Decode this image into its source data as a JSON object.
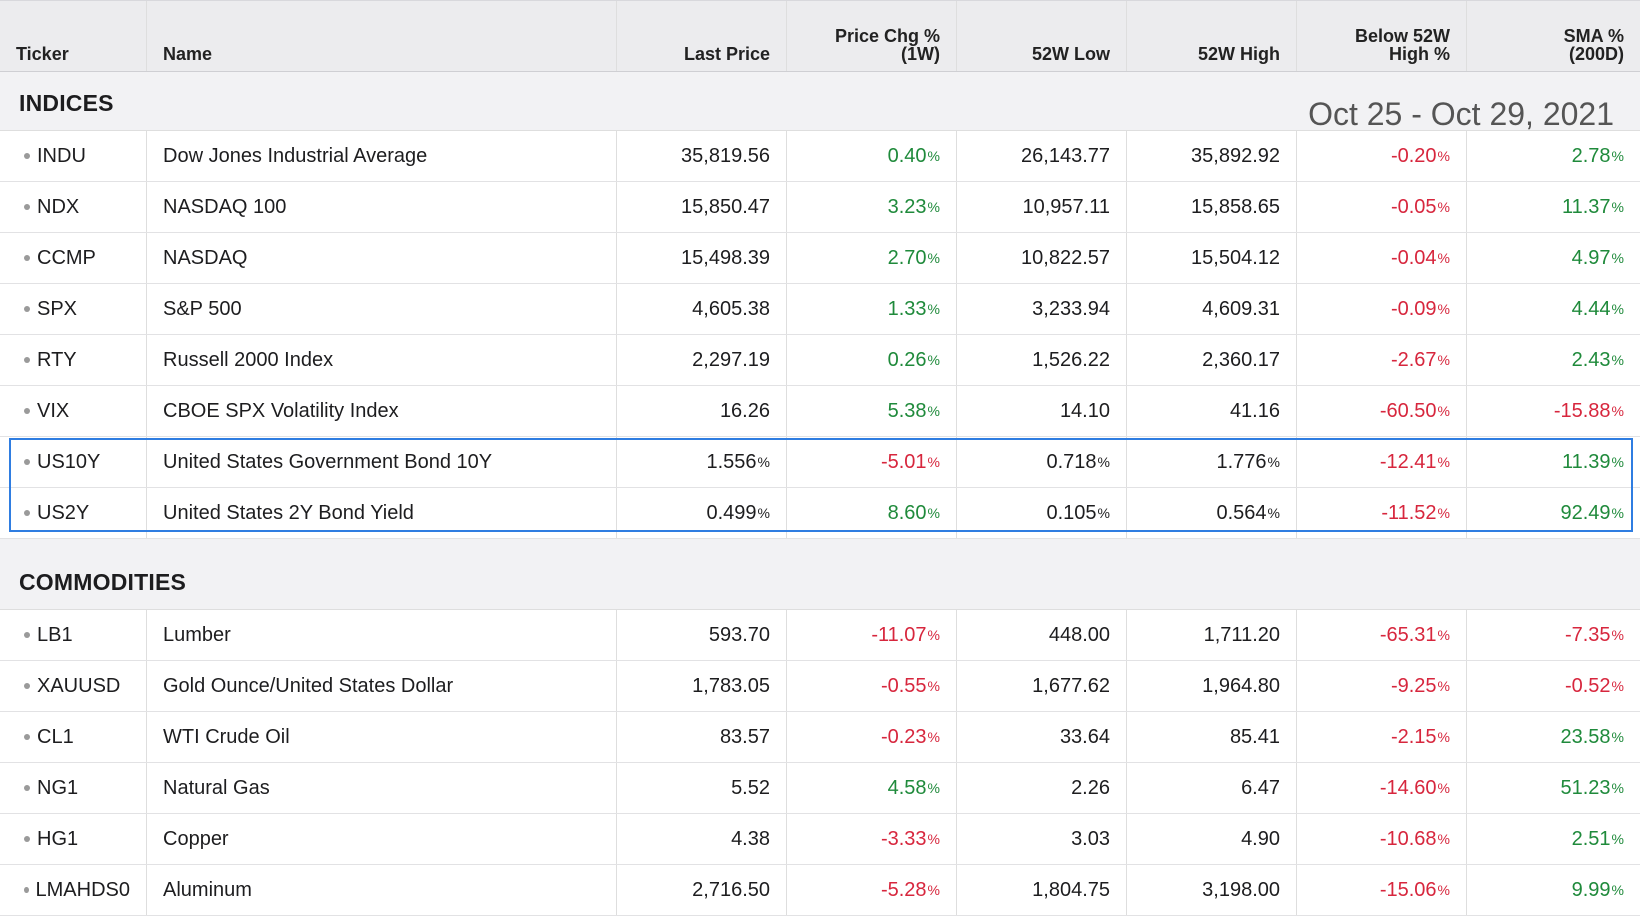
{
  "columns": [
    "Ticker",
    "Name",
    "Last Price",
    "Price Chg %|(1W)",
    "52W Low",
    "52W High",
    "Below 52W|High %",
    "SMA %|(200D)"
  ],
  "date_range": "Oct 25 - Oct 29, 2021",
  "colors": {
    "positive": "#1f8a3b",
    "negative": "#d7263d",
    "highlight": "#2f7de1"
  },
  "sections": [
    {
      "title": "INDICES",
      "rows": [
        {
          "ticker": "INDU",
          "name": "Dow Jones Industrial Average",
          "last": "35,819.56",
          "last_unit": "",
          "chg": "0.40",
          "low": "26,143.77",
          "low_unit": "",
          "high": "35,892.92",
          "high_unit": "",
          "below": "-0.20",
          "sma": "2.78"
        },
        {
          "ticker": "NDX",
          "name": "NASDAQ 100",
          "last": "15,850.47",
          "last_unit": "",
          "chg": "3.23",
          "low": "10,957.11",
          "low_unit": "",
          "high": "15,858.65",
          "high_unit": "",
          "below": "-0.05",
          "sma": "11.37"
        },
        {
          "ticker": "CCMP",
          "name": "NASDAQ",
          "last": "15,498.39",
          "last_unit": "",
          "chg": "2.70",
          "low": "10,822.57",
          "low_unit": "",
          "high": "15,504.12",
          "high_unit": "",
          "below": "-0.04",
          "sma": "4.97"
        },
        {
          "ticker": "SPX",
          "name": "S&P 500",
          "last": "4,605.38",
          "last_unit": "",
          "chg": "1.33",
          "low": "3,233.94",
          "low_unit": "",
          "high": "4,609.31",
          "high_unit": "",
          "below": "-0.09",
          "sma": "4.44"
        },
        {
          "ticker": "RTY",
          "name": "Russell 2000 Index",
          "last": "2,297.19",
          "last_unit": "",
          "chg": "0.26",
          "low": "1,526.22",
          "low_unit": "",
          "high": "2,360.17",
          "high_unit": "",
          "below": "-2.67",
          "sma": "2.43"
        },
        {
          "ticker": "VIX",
          "name": "CBOE SPX Volatility Index",
          "last": "16.26",
          "last_unit": "",
          "chg": "5.38",
          "low": "14.10",
          "low_unit": "",
          "high": "41.16",
          "high_unit": "",
          "below": "-60.50",
          "sma": "-15.88"
        },
        {
          "ticker": "US10Y",
          "name": "United States Government Bond 10Y",
          "last": "1.556",
          "last_unit": "%",
          "chg": "-5.01",
          "low": "0.718",
          "low_unit": "%",
          "high": "1.776",
          "high_unit": "%",
          "below": "-12.41",
          "sma": "11.39"
        },
        {
          "ticker": "US2Y",
          "name": "United States 2Y Bond Yield",
          "last": "0.499",
          "last_unit": "%",
          "chg": "8.60",
          "low": "0.105",
          "low_unit": "%",
          "high": "0.564",
          "high_unit": "%",
          "below": "-11.52",
          "sma": "92.49"
        }
      ]
    },
    {
      "title": "COMMODITIES",
      "rows": [
        {
          "ticker": "LB1",
          "name": "Lumber",
          "last": "593.70",
          "last_unit": "",
          "chg": "-11.07",
          "low": "448.00",
          "low_unit": "",
          "high": "1,711.20",
          "high_unit": "",
          "below": "-65.31",
          "sma": "-7.35"
        },
        {
          "ticker": "XAUUSD",
          "name": "Gold Ounce/United States Dollar",
          "last": "1,783.05",
          "last_unit": "",
          "chg": "-0.55",
          "low": "1,677.62",
          "low_unit": "",
          "high": "1,964.80",
          "high_unit": "",
          "below": "-9.25",
          "sma": "-0.52"
        },
        {
          "ticker": "CL1",
          "name": "WTI Crude Oil",
          "last": "83.57",
          "last_unit": "",
          "chg": "-0.23",
          "low": "33.64",
          "low_unit": "",
          "high": "85.41",
          "high_unit": "",
          "below": "-2.15",
          "sma": "23.58"
        },
        {
          "ticker": "NG1",
          "name": "Natural Gas",
          "last": "5.52",
          "last_unit": "",
          "chg": "4.58",
          "low": "2.26",
          "low_unit": "",
          "high": "6.47",
          "high_unit": "",
          "below": "-14.60",
          "sma": "51.23"
        },
        {
          "ticker": "HG1",
          "name": "Copper",
          "last": "4.38",
          "last_unit": "",
          "chg": "-3.33",
          "low": "3.03",
          "low_unit": "",
          "high": "4.90",
          "high_unit": "",
          "below": "-10.68",
          "sma": "2.51"
        },
        {
          "ticker": "LMAHDS0",
          "name": "Aluminum",
          "last": "2,716.50",
          "last_unit": "",
          "chg": "-5.28",
          "low": "1,804.75",
          "low_unit": "",
          "high": "3,198.00",
          "high_unit": "",
          "below": "-15.06",
          "sma": "9.99"
        }
      ]
    }
  ]
}
